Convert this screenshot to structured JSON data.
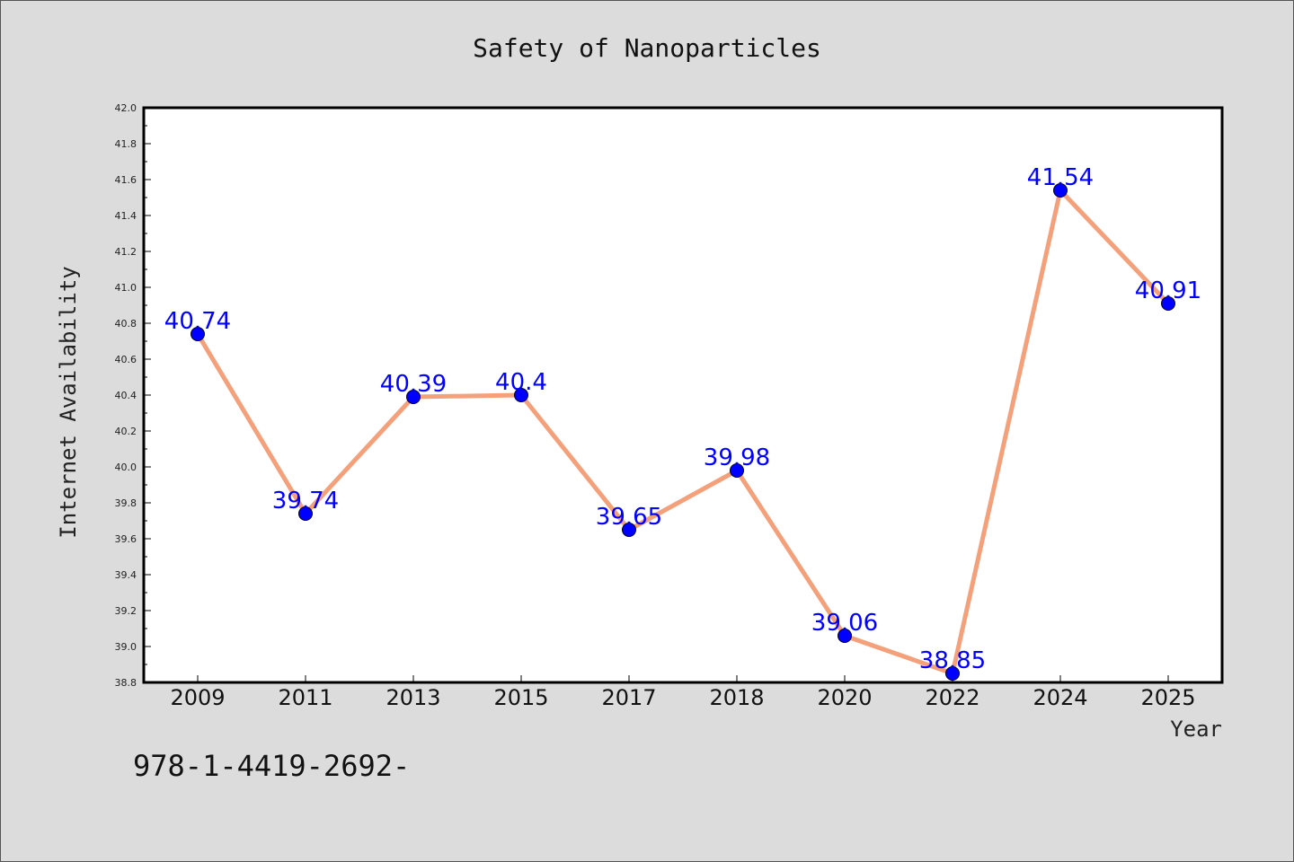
{
  "chart_data": {
    "type": "line",
    "title": "Safety of Nanoparticles",
    "xlabel": "Year",
    "ylabel": "Internet Availability",
    "categories": [
      "2009",
      "2011",
      "2013",
      "2015",
      "2017",
      "2018",
      "2020",
      "2022",
      "2024",
      "2025"
    ],
    "series": [
      {
        "values": [
          40.74,
          39.74,
          40.39,
          40.4,
          39.65,
          39.98,
          39.06,
          38.85,
          41.54,
          40.91
        ]
      }
    ],
    "data_labels": [
      "40.74",
      "39.74",
      "40.39",
      "40.4",
      "39.65",
      "39.98",
      "39.06",
      "38.85",
      "41.54",
      "40.91"
    ],
    "ylim": [
      38.8,
      42.0
    ],
    "yticks": [
      "38.8",
      "39.0",
      "39.2",
      "39.4",
      "39.6",
      "39.8",
      "40.0",
      "40.2",
      "40.4",
      "40.6",
      "40.8",
      "41.0",
      "41.2",
      "41.4",
      "41.6",
      "41.8",
      "42.0"
    ],
    "grid": false,
    "colors": {
      "line": "#f4a07a",
      "marker": "#0000ff",
      "data_label": "#0000ff",
      "plot_background": "#ffffff",
      "page_background": "#dcdcdc"
    }
  },
  "footer": {
    "text": "978-1-4419-2692-"
  }
}
